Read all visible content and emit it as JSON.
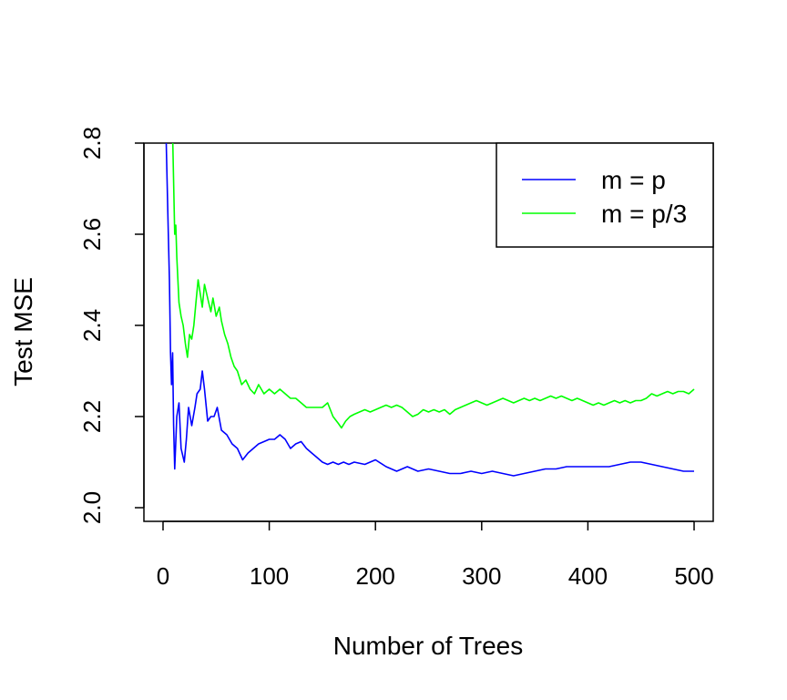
{
  "chart_data": {
    "type": "line",
    "title": "",
    "xlabel": "Number of Trees",
    "ylabel": "Test MSE",
    "xlim": [
      -18,
      518
    ],
    "ylim": [
      1.97,
      2.8
    ],
    "xticks": [
      0,
      100,
      200,
      300,
      400,
      500
    ],
    "xtick_labels": [
      "0",
      "100",
      "200",
      "300",
      "400",
      "500"
    ],
    "yticks": [
      2.0,
      2.2,
      2.4,
      2.6,
      2.8
    ],
    "ytick_labels": [
      "2.0",
      "2.2",
      "2.4",
      "2.6",
      "2.8"
    ],
    "grid": false,
    "legend_position": "top-right",
    "series": [
      {
        "name": "m = p",
        "color": "#0000ff",
        "x": [
          3,
          5,
          6,
          7,
          8,
          9,
          10,
          11,
          13,
          15,
          17,
          20,
          22,
          24,
          27,
          30,
          32,
          35,
          37,
          39,
          42,
          45,
          48,
          51,
          55,
          60,
          65,
          70,
          75,
          80,
          85,
          90,
          95,
          100,
          105,
          110,
          115,
          120,
          125,
          130,
          135,
          140,
          145,
          150,
          155,
          160,
          165,
          170,
          175,
          180,
          190,
          200,
          210,
          220,
          230,
          240,
          250,
          260,
          270,
          280,
          290,
          300,
          310,
          320,
          330,
          340,
          350,
          360,
          370,
          380,
          390,
          400,
          410,
          420,
          430,
          440,
          450,
          460,
          470,
          480,
          490,
          500
        ],
        "y": [
          2.8,
          2.6,
          2.5,
          2.34,
          2.27,
          2.34,
          2.18,
          2.085,
          2.2,
          2.23,
          2.13,
          2.1,
          2.15,
          2.22,
          2.18,
          2.22,
          2.25,
          2.26,
          2.3,
          2.26,
          2.19,
          2.2,
          2.2,
          2.22,
          2.17,
          2.16,
          2.14,
          2.13,
          2.105,
          2.12,
          2.13,
          2.14,
          2.145,
          2.15,
          2.15,
          2.16,
          2.15,
          2.13,
          2.14,
          2.145,
          2.13,
          2.12,
          2.11,
          2.1,
          2.095,
          2.1,
          2.095,
          2.1,
          2.095,
          2.1,
          2.095,
          2.105,
          2.09,
          2.08,
          2.09,
          2.08,
          2.085,
          2.08,
          2.075,
          2.075,
          2.08,
          2.075,
          2.08,
          2.075,
          2.07,
          2.075,
          2.08,
          2.085,
          2.085,
          2.09,
          2.09,
          2.09,
          2.09,
          2.09,
          2.095,
          2.1,
          2.1,
          2.095,
          2.09,
          2.085,
          2.08,
          2.08
        ]
      },
      {
        "name": "m = p/3",
        "color": "#00ff00",
        "x": [
          3,
          5,
          7,
          9,
          11,
          12,
          13,
          14,
          15,
          17,
          19,
          21,
          23,
          25,
          27,
          29,
          31,
          33,
          35,
          37,
          39,
          41,
          43,
          45,
          47,
          50,
          53,
          55,
          58,
          61,
          64,
          67,
          70,
          74,
          78,
          82,
          86,
          90,
          95,
          100,
          105,
          110,
          115,
          120,
          125,
          130,
          135,
          140,
          145,
          150,
          155,
          160,
          165,
          168,
          172,
          176,
          180,
          185,
          190,
          195,
          200,
          205,
          210,
          215,
          220,
          225,
          230,
          235,
          240,
          245,
          250,
          255,
          260,
          265,
          270,
          275,
          280,
          285,
          290,
          295,
          300,
          305,
          310,
          315,
          320,
          325,
          330,
          335,
          340,
          345,
          350,
          355,
          360,
          365,
          370,
          375,
          380,
          385,
          390,
          395,
          400,
          405,
          410,
          415,
          420,
          425,
          430,
          435,
          440,
          445,
          450,
          455,
          460,
          465,
          470,
          475,
          480,
          485,
          490,
          495,
          500
        ],
        "y": [
          2.8,
          2.83,
          2.85,
          2.82,
          2.6,
          2.62,
          2.55,
          2.5,
          2.45,
          2.42,
          2.4,
          2.36,
          2.33,
          2.38,
          2.37,
          2.4,
          2.45,
          2.5,
          2.47,
          2.44,
          2.49,
          2.47,
          2.45,
          2.43,
          2.46,
          2.42,
          2.44,
          2.41,
          2.38,
          2.36,
          2.33,
          2.31,
          2.3,
          2.27,
          2.28,
          2.26,
          2.25,
          2.27,
          2.25,
          2.26,
          2.25,
          2.26,
          2.25,
          2.24,
          2.24,
          2.23,
          2.22,
          2.22,
          2.22,
          2.22,
          2.23,
          2.2,
          2.185,
          2.175,
          2.19,
          2.2,
          2.205,
          2.21,
          2.215,
          2.21,
          2.215,
          2.22,
          2.225,
          2.22,
          2.225,
          2.22,
          2.21,
          2.2,
          2.205,
          2.215,
          2.21,
          2.215,
          2.21,
          2.215,
          2.205,
          2.215,
          2.22,
          2.225,
          2.23,
          2.235,
          2.23,
          2.225,
          2.23,
          2.235,
          2.24,
          2.235,
          2.23,
          2.235,
          2.24,
          2.235,
          2.24,
          2.235,
          2.24,
          2.245,
          2.24,
          2.245,
          2.24,
          2.235,
          2.24,
          2.235,
          2.23,
          2.225,
          2.23,
          2.225,
          2.23,
          2.235,
          2.23,
          2.235,
          2.23,
          2.235,
          2.235,
          2.24,
          2.25,
          2.245,
          2.25,
          2.255,
          2.25,
          2.255,
          2.255,
          2.25,
          2.26
        ]
      }
    ]
  }
}
